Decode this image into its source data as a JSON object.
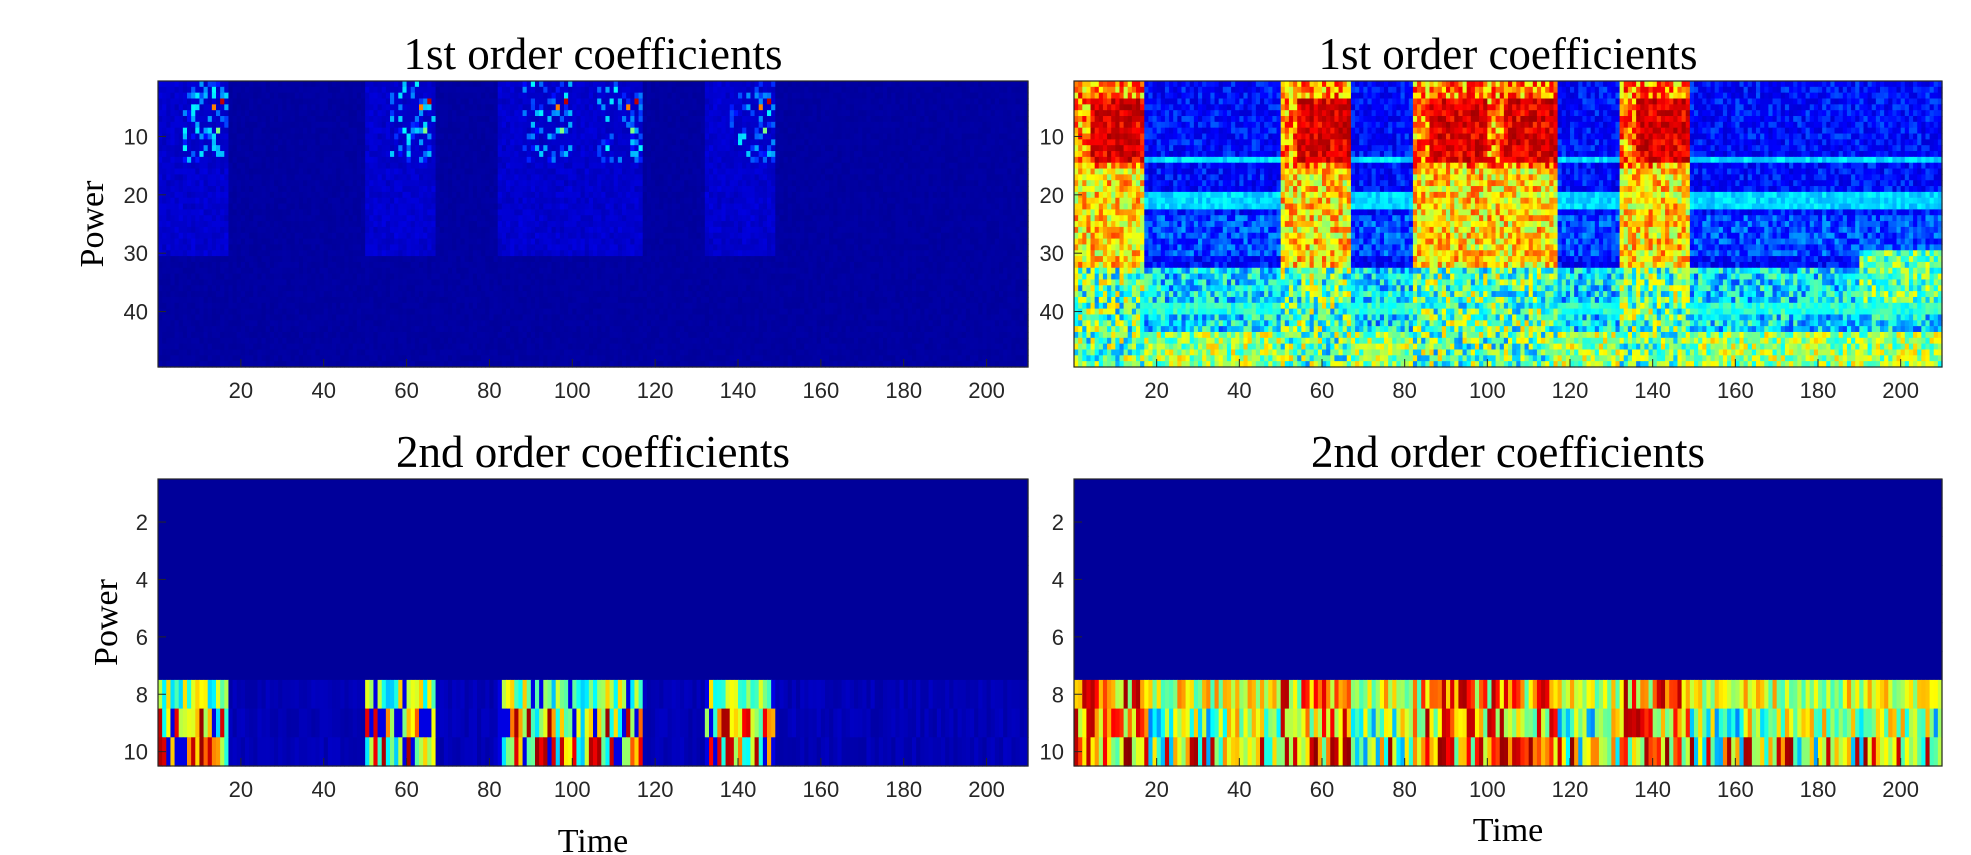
{
  "chart_data": [
    {
      "type": "heatmap",
      "title": "1st order coefficients",
      "xlabel": "",
      "ylabel": "Power",
      "xlim": [
        0,
        210
      ],
      "ylim": [
        1,
        49
      ],
      "x_ticks": [
        20,
        40,
        60,
        80,
        100,
        120,
        140,
        160,
        180,
        200
      ],
      "y_ticks": [
        10,
        20,
        30,
        40
      ],
      "rows": 49,
      "colormap": "jet",
      "colormap_colors": [
        "#00008f",
        "#0000ff",
        "#00ffff",
        "#ffff00",
        "#ff0000",
        "#800000"
      ],
      "scaling": "linear",
      "active_segments": [
        [
          1,
          17
        ],
        [
          51,
          67
        ],
        [
          83,
          100
        ],
        [
          101,
          117
        ],
        [
          133,
          149
        ]
      ],
      "hotspot_rows": [
        5,
        7,
        9,
        11,
        13
      ],
      "background_level": 0.02,
      "noise_level": 0.06
    },
    {
      "type": "heatmap",
      "title": "1st order coefficients",
      "xlabel": "",
      "ylabel": "",
      "xlim": [
        0,
        210
      ],
      "ylim": [
        1,
        49
      ],
      "x_ticks": [
        20,
        40,
        60,
        80,
        100,
        120,
        140,
        160,
        180,
        200
      ],
      "y_ticks": [
        10,
        20,
        30,
        40
      ],
      "rows": 49,
      "colormap": "jet",
      "colormap_colors": [
        "#00008f",
        "#0000ff",
        "#00ffff",
        "#ffff00",
        "#ff0000",
        "#800000"
      ],
      "scaling": "log",
      "active_segments": [
        [
          1,
          17
        ],
        [
          51,
          67
        ],
        [
          83,
          100
        ],
        [
          101,
          117
        ],
        [
          133,
          149
        ]
      ],
      "hotspot_rows": [
        5,
        7,
        9,
        11,
        13
      ],
      "background_level": 0.15,
      "noise_level": 0.35
    },
    {
      "type": "heatmap",
      "title": "2nd order coefficients",
      "xlabel": "Time",
      "ylabel": "Power",
      "xlim": [
        0,
        210
      ],
      "ylim": [
        1,
        10
      ],
      "x_ticks": [
        20,
        40,
        60,
        80,
        100,
        120,
        140,
        160,
        180,
        200
      ],
      "y_ticks": [
        2,
        4,
        6,
        8,
        10
      ],
      "rows": 10,
      "active_rows": [
        8,
        9,
        10
      ],
      "colormap": "jet",
      "colormap_colors": [
        "#00008f",
        "#0000ff",
        "#00ffff",
        "#ffff00",
        "#ff0000",
        "#800000"
      ],
      "scaling": "linear",
      "active_segments": [
        [
          1,
          17
        ],
        [
          51,
          67
        ],
        [
          83,
          100
        ],
        [
          101,
          117
        ],
        [
          133,
          149
        ]
      ],
      "background_level": 0.04,
      "noise_level": 0.1
    },
    {
      "type": "heatmap",
      "title": "2nd order coefficients",
      "xlabel": "Time",
      "ylabel": "",
      "xlim": [
        0,
        210
      ],
      "ylim": [
        1,
        10
      ],
      "x_ticks": [
        20,
        40,
        60,
        80,
        100,
        120,
        140,
        160,
        180,
        200
      ],
      "y_ticks": [
        2,
        4,
        6,
        8,
        10
      ],
      "rows": 10,
      "active_rows": [
        8,
        9,
        10
      ],
      "colormap": "jet",
      "colormap_colors": [
        "#00008f",
        "#0000ff",
        "#00ffff",
        "#ffff00",
        "#ff0000",
        "#800000"
      ],
      "scaling": "log",
      "active_segments": [
        [
          1,
          17
        ],
        [
          51,
          67
        ],
        [
          83,
          100
        ],
        [
          101,
          117
        ],
        [
          133,
          149
        ]
      ],
      "background_level": 0.35,
      "noise_level": 0.5
    }
  ]
}
